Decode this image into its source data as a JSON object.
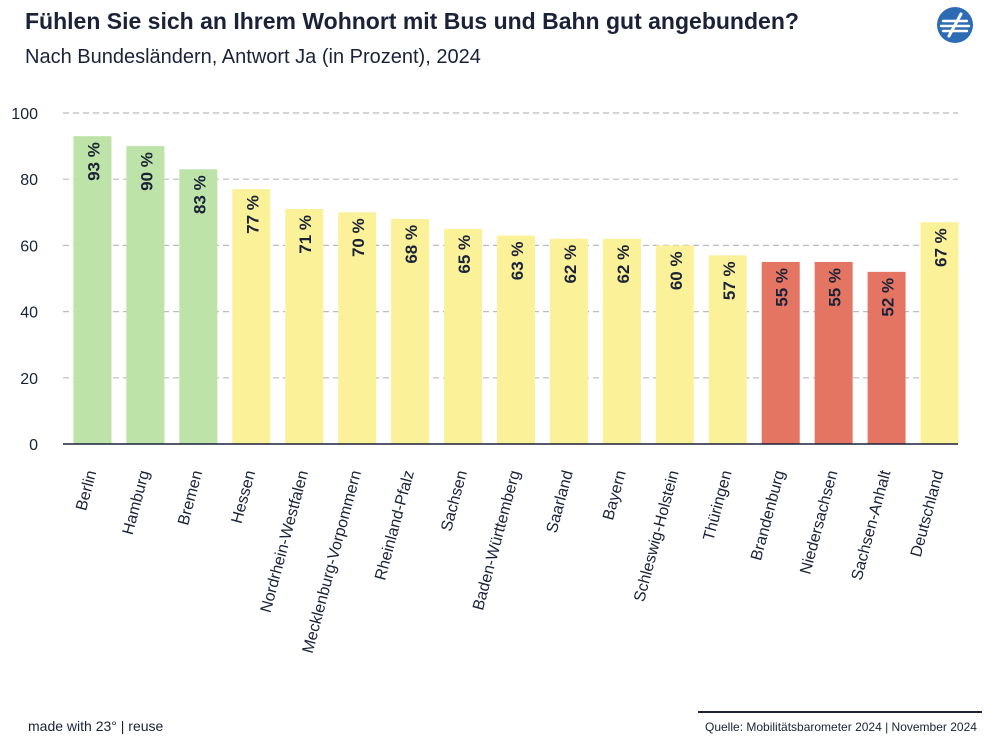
{
  "header": {
    "title": "Fühlen Sie sich an Ihrem Wohnort mit Bus und Bahn gut angebunden?",
    "subtitle": "Nach Bundesländern, Antwort Ja (in Prozent), 2024",
    "logo_icon": "stylized-globe-logo-icon"
  },
  "chart_data": {
    "type": "bar",
    "title": "Fühlen Sie sich an Ihrem Wohnort mit Bus und Bahn gut angebunden?",
    "subtitle": "Nach Bundesländern, Antwort Ja (in Prozent), 2024",
    "xlabel": "",
    "ylabel": "",
    "ylim": [
      0,
      100
    ],
    "yticks": [
      0,
      20,
      40,
      60,
      80,
      100
    ],
    "grid": true,
    "value_suffix": " %",
    "categories": [
      "Berlin",
      "Hamburg",
      "Bremen",
      "Hessen",
      "Nordrhein-Westfalen",
      "Mecklenburg-Vorpommern",
      "Rheinland-Pfalz",
      "Sachsen",
      "Baden-Württemberg",
      "Saarland",
      "Bayern",
      "Schleswig-Holstein",
      "Thüringen",
      "Brandenburg",
      "Niedersachsen",
      "Sachsen-Anhalt",
      "Deutschland"
    ],
    "values": [
      93,
      90,
      83,
      77,
      71,
      70,
      68,
      65,
      63,
      62,
      62,
      60,
      57,
      55,
      55,
      52,
      67
    ],
    "data_labels": [
      "93 %",
      "90 %",
      "83 %",
      "77 %",
      "71 %",
      "70 %",
      "68 %",
      "65 %",
      "63 %",
      "62 %",
      "62 %",
      "60 %",
      "57 %",
      "55 %",
      "55 %",
      "52 %",
      "67 %"
    ],
    "color_groups": [
      "high",
      "high",
      "high",
      "mid",
      "mid",
      "mid",
      "mid",
      "mid",
      "mid",
      "mid",
      "mid",
      "mid",
      "mid",
      "low",
      "low",
      "low",
      "mid"
    ],
    "colors": {
      "high": "#bde3a8",
      "mid": "#fbf199",
      "low": "#e57563",
      "grid": "#bbbbbb",
      "axis": "#1a2238",
      "text": "#1a2238"
    }
  },
  "footer": {
    "left": "made with 23° | reuse",
    "source": "Quelle: Mobilitätsbarometer 2024 | November 2024"
  }
}
